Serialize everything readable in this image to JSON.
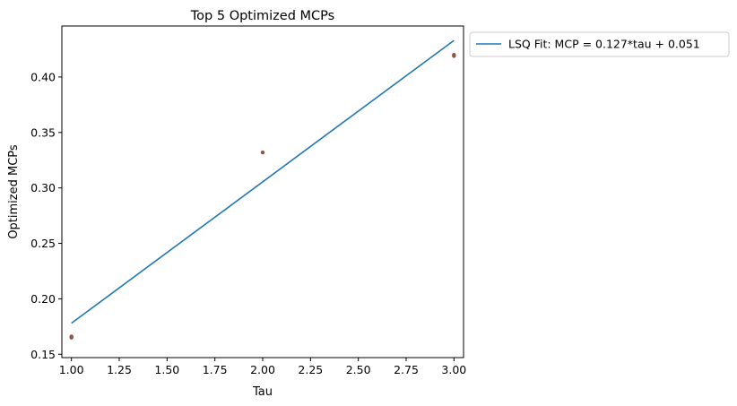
{
  "chart_data": {
    "type": "scatter",
    "title": "Top 5 Optimized MCPs",
    "xlabel": "Tau",
    "ylabel": "Optimized MCPs",
    "xlim": [
      0.95,
      3.05
    ],
    "ylim": [
      0.147,
      0.446
    ],
    "xticks": [
      1.0,
      1.25,
      1.5,
      1.75,
      2.0,
      2.25,
      2.5,
      2.75,
      3.0
    ],
    "xtick_labels": [
      "1.00",
      "1.25",
      "1.50",
      "1.75",
      "2.00",
      "2.25",
      "2.50",
      "2.75",
      "3.00"
    ],
    "yticks": [
      0.15,
      0.2,
      0.25,
      0.3,
      0.35,
      0.4
    ],
    "ytick_labels": [
      "0.15",
      "0.20",
      "0.25",
      "0.30",
      "0.35",
      "0.40"
    ],
    "grid": false,
    "legend_position": "outside-upper-right",
    "points": {
      "color": "#8c564b",
      "x": [
        1,
        1,
        2,
        3,
        3
      ],
      "y": [
        0.165,
        0.166,
        0.332,
        0.419,
        0.42
      ]
    },
    "series": [
      {
        "name": "LSQ Fit: MCP = 0.127*tau + 0.051",
        "type": "line",
        "color": "#1f77b4",
        "x": [
          1,
          3
        ],
        "y": [
          0.178,
          0.433
        ]
      }
    ]
  }
}
